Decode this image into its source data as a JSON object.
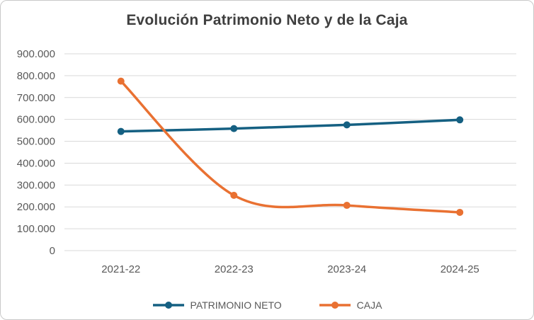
{
  "chart_data": {
    "type": "line",
    "title": "Evolución Patrimonio Neto y de la Caja",
    "categories": [
      "2021-22",
      "2022-23",
      "2023-24",
      "2024-25"
    ],
    "series": [
      {
        "name": "PATRIMONIO NETO",
        "color": "#156082",
        "values": [
          545000,
          558000,
          575000,
          598000
        ]
      },
      {
        "name": "CAJA",
        "color": "#E97132",
        "values": [
          775000,
          253000,
          207000,
          175000
        ]
      }
    ],
    "ylim": [
      0,
      900000
    ],
    "ytick_step": 100000,
    "ytick_labels": [
      "0",
      "100.000",
      "200.000",
      "300.000",
      "400.000",
      "500.000",
      "600.000",
      "700.000",
      "800.000",
      "900.000"
    ],
    "grid": true,
    "grid_color": "#D9D9D9",
    "axis_label_color": "#595959",
    "legend_position": "bottom",
    "smooth_lines": true
  }
}
